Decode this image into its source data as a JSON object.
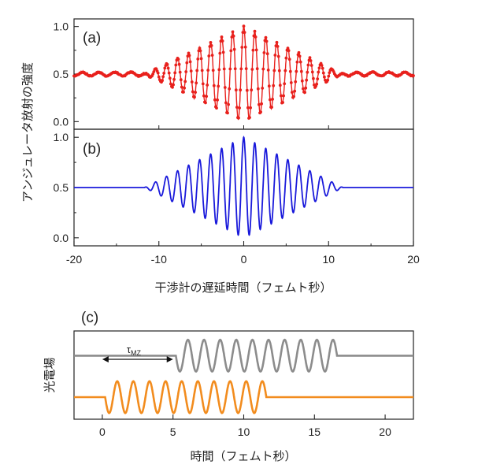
{
  "chart_data": [
    {
      "id": "a",
      "type": "line",
      "panel_label": "(a)",
      "ylabel": "アンジュレータ放射の強度",
      "xlim": [
        -20,
        20
      ],
      "ylim": [
        -0.08,
        1.08
      ],
      "yticks": [
        0.0,
        0.5,
        1.0
      ],
      "ytick_labels": [
        "0.0",
        "0.5",
        "1.0"
      ],
      "series": [
        {
          "style": "markers+line",
          "color": "#e8201c",
          "baseline": 0.5,
          "peak_amplitude": 0.5,
          "carrier_period_fs": 1.3,
          "envelope_halfwidth_fs": 11.7,
          "far_wing_ripple_amplitude": 0.02,
          "x_range": [
            -20,
            20
          ]
        }
      ]
    },
    {
      "id": "b",
      "type": "line",
      "panel_label": "(b)",
      "xlabel": "干渉計の遅延時間（フェムト秒）",
      "xlim": [
        -20,
        20
      ],
      "xticks": [
        -20,
        -10,
        0,
        10,
        20
      ],
      "xtick_labels": [
        "-20",
        "-10",
        "0",
        "10",
        "20"
      ],
      "ylim": [
        -0.08,
        1.08
      ],
      "yticks": [
        0.0,
        0.5,
        1.0
      ],
      "ytick_labels": [
        "0.0",
        "0.5",
        "1.0"
      ],
      "series": [
        {
          "style": "line",
          "color": "#1a1adb",
          "baseline": 0.5,
          "peak_amplitude": 0.5,
          "carrier_period_fs": 1.3,
          "envelope_halfwidth_fs": 11.7,
          "x_range": [
            -20,
            20
          ]
        }
      ]
    },
    {
      "id": "c",
      "type": "line",
      "panel_label": "(c)",
      "ylabel": "光電場",
      "xlabel": "時間（フェムト秒）",
      "xlim": [
        -2,
        22
      ],
      "xticks": [
        0,
        5,
        10,
        15,
        20
      ],
      "xtick_labels": [
        "0",
        "5",
        "10",
        "15",
        "20"
      ],
      "annotation": {
        "symbol": "τ",
        "subscript": "MZ",
        "arrow_from": 0,
        "arrow_to": 5
      },
      "series": [
        {
          "color": "#8c8c8c",
          "baseline": 0.72,
          "amplitude": 0.18,
          "pulse_start": 5.2,
          "pulse_end": 16.6,
          "cycles": 10
        },
        {
          "color": "#f28c1e",
          "baseline": 0.25,
          "amplitude": 0.18,
          "pulse_start": 0.2,
          "pulse_end": 11.6,
          "cycles": 10
        }
      ]
    }
  ]
}
